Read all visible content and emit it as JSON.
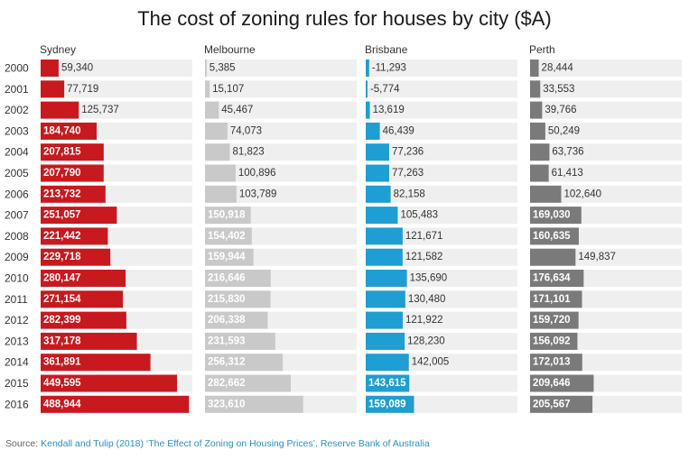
{
  "title": "The cost of zoning rules for houses by city ($A)",
  "source": {
    "label": "Source:",
    "text": "Kendall and Tulip (2018) ‘The Effect of Zoning on Housing Prices’, Reserve Bank of Australia"
  },
  "colors": {
    "track": "#efefef",
    "sydney": "#c8191e",
    "melbourne": "#c9c9c9",
    "brisbane": "#1e9ed2",
    "perth": "#7a7a7a"
  },
  "chart_data": {
    "type": "bar",
    "orientation": "horizontal",
    "layout": "small-multiples",
    "title": "The cost of zoning rules for houses by city ($A)",
    "categories": [
      "2000",
      "2001",
      "2002",
      "2003",
      "2004",
      "2005",
      "2006",
      "2007",
      "2008",
      "2009",
      "2010",
      "2011",
      "2012",
      "2013",
      "2014",
      "2015",
      "2016"
    ],
    "xlim": [
      0,
      500000
    ],
    "grid": false,
    "series": [
      {
        "name": "Sydney",
        "color": "#c8191e",
        "label_inside_threshold": 150000,
        "values": [
          59340,
          77719,
          125737,
          184740,
          207815,
          207790,
          213732,
          251057,
          221442,
          229718,
          280147,
          271154,
          282399,
          317178,
          361891,
          449595,
          488944
        ],
        "labels": [
          "59,340",
          "77,719",
          "125,737",
          "184,740",
          "207,815",
          "207,790",
          "213,732",
          "251,057",
          "221,442",
          "229,718",
          "280,147",
          "271,154",
          "282,399",
          "317,178",
          "361,891",
          "449,595",
          "488,944"
        ]
      },
      {
        "name": "Melbourne",
        "color": "#c9c9c9",
        "label_inside_threshold": 150000,
        "values": [
          5385,
          15107,
          45467,
          74073,
          81823,
          100896,
          103789,
          150918,
          154402,
          159944,
          216646,
          215830,
          206338,
          231593,
          256312,
          282662,
          323610
        ],
        "labels": [
          "5,385",
          "15,107",
          "45,467",
          "74,073",
          "81,823",
          "100,896",
          "103,789",
          "150,918",
          "154,402",
          "159,944",
          "216,646",
          "215,830",
          "206,338",
          "231,593",
          "256,312",
          "282,662",
          "323,610"
        ]
      },
      {
        "name": "Brisbane",
        "color": "#1e9ed2",
        "label_inside_threshold": 143000,
        "values": [
          -11293,
          -5774,
          13619,
          46439,
          77236,
          77263,
          82158,
          105483,
          121671,
          121582,
          135690,
          130480,
          121922,
          128230,
          142005,
          143615,
          159089
        ],
        "labels": [
          "-11,293",
          "-5,774",
          "13,619",
          "46,439",
          "77,236",
          "77,263",
          "82,158",
          "105,483",
          "121,671",
          "121,582",
          "135,690",
          "130,480",
          "121,922",
          "128,230",
          "142,005",
          "143,615",
          "159,089"
        ]
      },
      {
        "name": "Perth",
        "color": "#7a7a7a",
        "label_inside_threshold": 150000,
        "values": [
          28444,
          33553,
          39766,
          50249,
          63736,
          61413,
          102640,
          169030,
          160635,
          149837,
          176634,
          171101,
          159720,
          156092,
          172013,
          209646,
          205567
        ],
        "labels": [
          "28,444",
          "33,553",
          "39,766",
          "50,249",
          "63,736",
          "61,413",
          "102,640",
          "169,030",
          "160,635",
          "149,837",
          "176,634",
          "171,101",
          "159,720",
          "156,092",
          "172,013",
          "209,646",
          "205,567"
        ]
      }
    ]
  }
}
